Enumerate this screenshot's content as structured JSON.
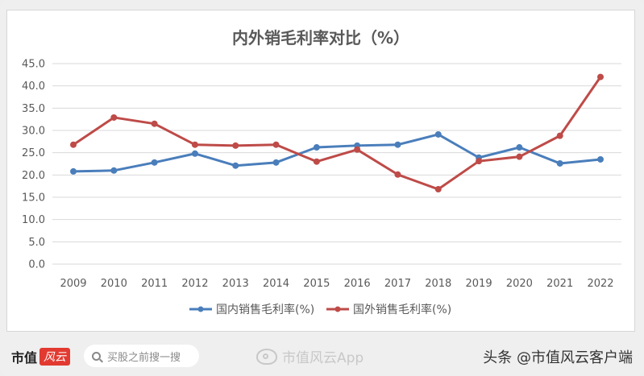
{
  "chart_data": {
    "type": "line",
    "title": "内外销毛利率对比（%）",
    "xlabel": "",
    "ylabel": "",
    "categories": [
      "2009",
      "2010",
      "2011",
      "2012",
      "2013",
      "2014",
      "2015",
      "2016",
      "2017",
      "2018",
      "2019",
      "2020",
      "2021",
      "2022"
    ],
    "series": [
      {
        "name": "国内销售毛利率(%)",
        "color": "#4a7ebb",
        "values": [
          20.8,
          21.0,
          22.8,
          24.8,
          22.1,
          22.8,
          26.2,
          26.6,
          26.8,
          29.1,
          23.9,
          26.2,
          22.6,
          23.5
        ]
      },
      {
        "name": "国外销售毛利率(%)",
        "color": "#be4b48",
        "values": [
          26.8,
          32.9,
          31.5,
          26.8,
          26.6,
          26.8,
          23.0,
          25.7,
          20.1,
          16.8,
          23.1,
          24.1,
          28.8,
          42.0
        ]
      }
    ],
    "ylim": [
      0,
      45
    ],
    "yticks": [
      "0.0",
      "5.0",
      "10.0",
      "15.0",
      "20.0",
      "25.0",
      "30.0",
      "35.0",
      "40.0",
      "45.0"
    ],
    "grid": true,
    "legend_position": "bottom"
  },
  "footer": {
    "brand_text": "市值",
    "brand_badge": "风云",
    "search_placeholder": "买股之前搜一搜",
    "weibo_text": "市值风云App",
    "toutiao_text": "头条 @市值风云客户端"
  }
}
